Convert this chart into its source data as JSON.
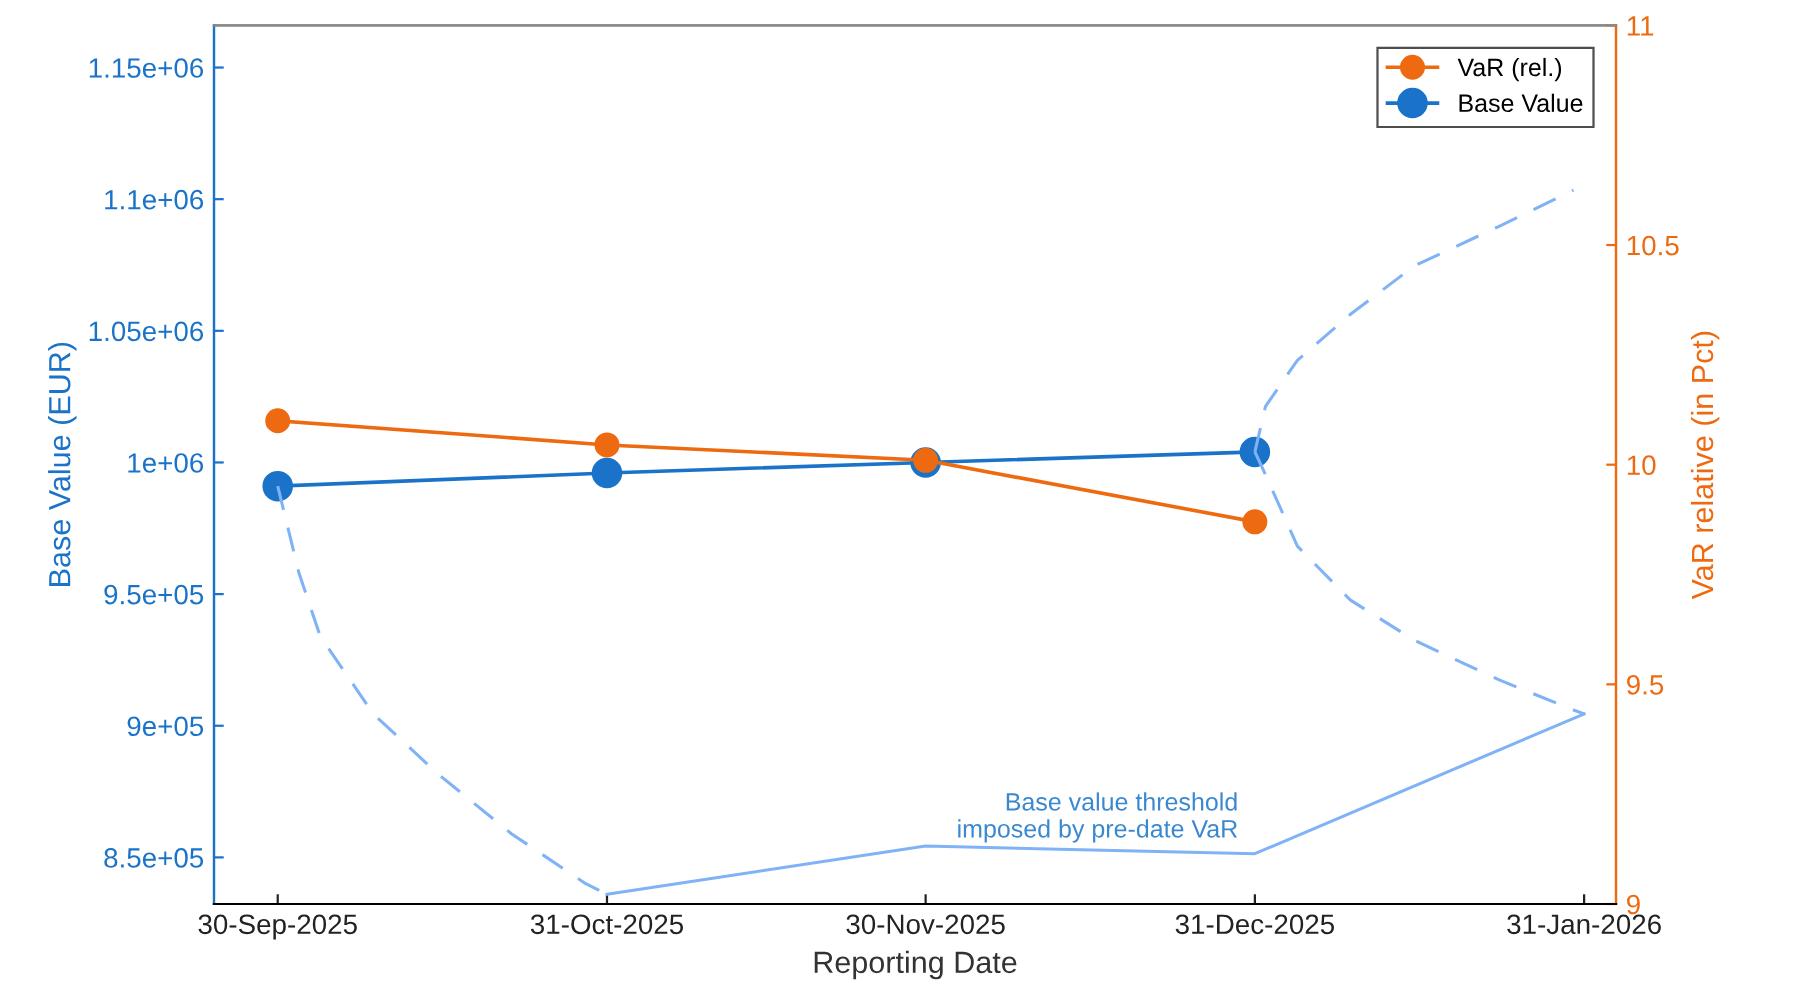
{
  "chart_data": {
    "type": "line",
    "xlabel": "Reporting Date",
    "ylabel": "Base Value (EUR)",
    "y2label": "VaR relative (in Pct)",
    "xlim": [
      "2025-09-24",
      "2026-02-03"
    ],
    "xticks": [
      {
        "value": "2025-09-30",
        "label": "30-Sep-2025"
      },
      {
        "value": "2025-10-31",
        "label": "31-Oct-2025"
      },
      {
        "value": "2025-11-30",
        "label": "30-Nov-2025"
      },
      {
        "value": "2025-12-31",
        "label": "31-Dec-2025"
      },
      {
        "value": "2026-01-31",
        "label": "31-Jan-2026"
      }
    ],
    "ylim": [
      832300,
      1166000
    ],
    "yticks": [
      {
        "value": 850000,
        "label": "8.5e+05"
      },
      {
        "value": 900000,
        "label": "9e+05"
      },
      {
        "value": 950000,
        "label": "9.5e+05"
      },
      {
        "value": 1000000,
        "label": "1e+06"
      },
      {
        "value": 1050000,
        "label": "1.05e+06"
      },
      {
        "value": 1100000,
        "label": "1.1e+06"
      },
      {
        "value": 1150000,
        "label": "1.15e+06"
      }
    ],
    "y2lim": [
      9,
      11
    ],
    "y2ticks": [
      9,
      9.5,
      10,
      10.5,
      11
    ],
    "grid": false,
    "legend": "top right",
    "series": [
      {
        "name": "VaR (rel.)",
        "color": "#ee6a10",
        "axis": "y2",
        "marker": "circle",
        "x": [
          "2025-09-30",
          "2025-10-31",
          "2025-11-30",
          "2025-12-31"
        ],
        "values": [
          10.1,
          10.045,
          10.01,
          9.87
        ]
      },
      {
        "name": "Base Value",
        "color": "#1a73c8",
        "marker": "circle",
        "x": [
          "2025-09-30",
          "2025-10-31",
          "2025-11-30",
          "2025-12-31"
        ],
        "values": [
          991000,
          996000,
          1000000,
          1004000
        ]
      },
      {
        "color": "#80b3f5",
        "marker": "none",
        "x": [
          "2025-10-31",
          "2025-11-30",
          "2025-12-31",
          "2026-01-31"
        ],
        "values": [
          836000,
          854300,
          851400,
          904500
        ]
      },
      {
        "color": "#80b3f5",
        "marker": "none",
        "line_style": "dashed",
        "x": [
          "2025-09-30",
          "2025-10-02",
          "2025-10-04",
          "2025-10-09",
          "2025-10-15",
          "2025-10-22",
          "2025-10-29",
          "2025-10-31"
        ],
        "values": [
          991000,
          958000,
          934000,
          904500,
          882000,
          859000,
          840000,
          836000
        ]
      },
      {
        "color": "#80b3f5",
        "marker": "none",
        "line_style": "dashed",
        "x": [
          "2025-12-31",
          "2026-01-01",
          "2026-01-04",
          "2026-01-09",
          "2026-01-15",
          "2026-01-23",
          "2026-01-30"
        ],
        "values": [
          1004000,
          1021300,
          1038800,
          1056300,
          1074600,
          1089700,
          1103400
        ]
      },
      {
        "color": "#80b3f5",
        "marker": "none",
        "line_style": "dashed",
        "x": [
          "2025-12-31",
          "2026-01-01",
          "2026-01-04",
          "2026-01-09",
          "2026-01-15",
          "2026-01-23",
          "2026-01-30",
          "2026-01-31"
        ],
        "values": [
          1004000,
          995400,
          968200,
          947700,
          932500,
          917400,
          906000,
          904500
        ]
      }
    ],
    "annotations": [
      {
        "text": "Base value threshold\nimposed by pre-date VaR",
        "x": "2025-12-31",
        "y": 851400
      }
    ]
  }
}
